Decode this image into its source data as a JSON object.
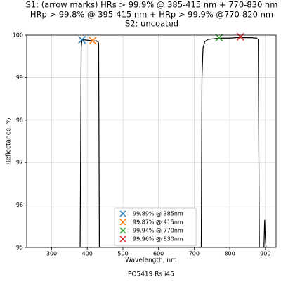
{
  "chart_data": {
    "type": "line",
    "title": [
      "S1: (arrow marks) HRs > 99.9% @ 385-415 nm + 770-830 nm",
      "HRp > 99.8% @ 395-415 nm + HRp > 99.9% @770-820 nm",
      "S2: uncoated"
    ],
    "xlabel": "Wavelength, nm",
    "ylabel": "Reflectance, %",
    "footer": "PO5419 Rs i45",
    "xlim": [
      230,
      930
    ],
    "ylim": [
      95,
      100
    ],
    "xticks": [
      300,
      400,
      500,
      600,
      700,
      800,
      900
    ],
    "yticks": [
      95,
      96,
      97,
      98,
      99,
      100
    ],
    "grid": true,
    "legend": "lower center",
    "curve": {
      "color": "#000000",
      "x": [
        380,
        383,
        385,
        390,
        400,
        410,
        415,
        420,
        425,
        428,
        430,
        432,
        434,
        720,
        722,
        725,
        730,
        740,
        760,
        780,
        800,
        820,
        840,
        860,
        875,
        880,
        883,
        896,
        898,
        900,
        902
      ],
      "values": [
        95,
        99.7,
        99.88,
        99.89,
        99.88,
        99.87,
        99.87,
        99.86,
        99.87,
        99.85,
        99.86,
        99.8,
        95,
        95,
        99.0,
        99.7,
        99.85,
        99.9,
        99.92,
        99.93,
        99.93,
        99.94,
        99.94,
        99.94,
        99.93,
        99.9,
        95,
        95,
        95.65,
        95.2,
        95
      ]
    },
    "series": [
      {
        "name": "99.89% @ 385nm",
        "color": "#1f77b4",
        "x": [
          385
        ],
        "values": [
          99.89
        ]
      },
      {
        "name": "99.87% @ 415nm",
        "color": "#ff7f0e",
        "x": [
          415
        ],
        "values": [
          99.87
        ]
      },
      {
        "name": "99.94% @ 770nm",
        "color": "#2ca02c",
        "x": [
          770
        ],
        "values": [
          99.94
        ]
      },
      {
        "name": "99.96% @ 830nm",
        "color": "#d62728",
        "x": [
          830
        ],
        "values": [
          99.96
        ]
      }
    ]
  }
}
